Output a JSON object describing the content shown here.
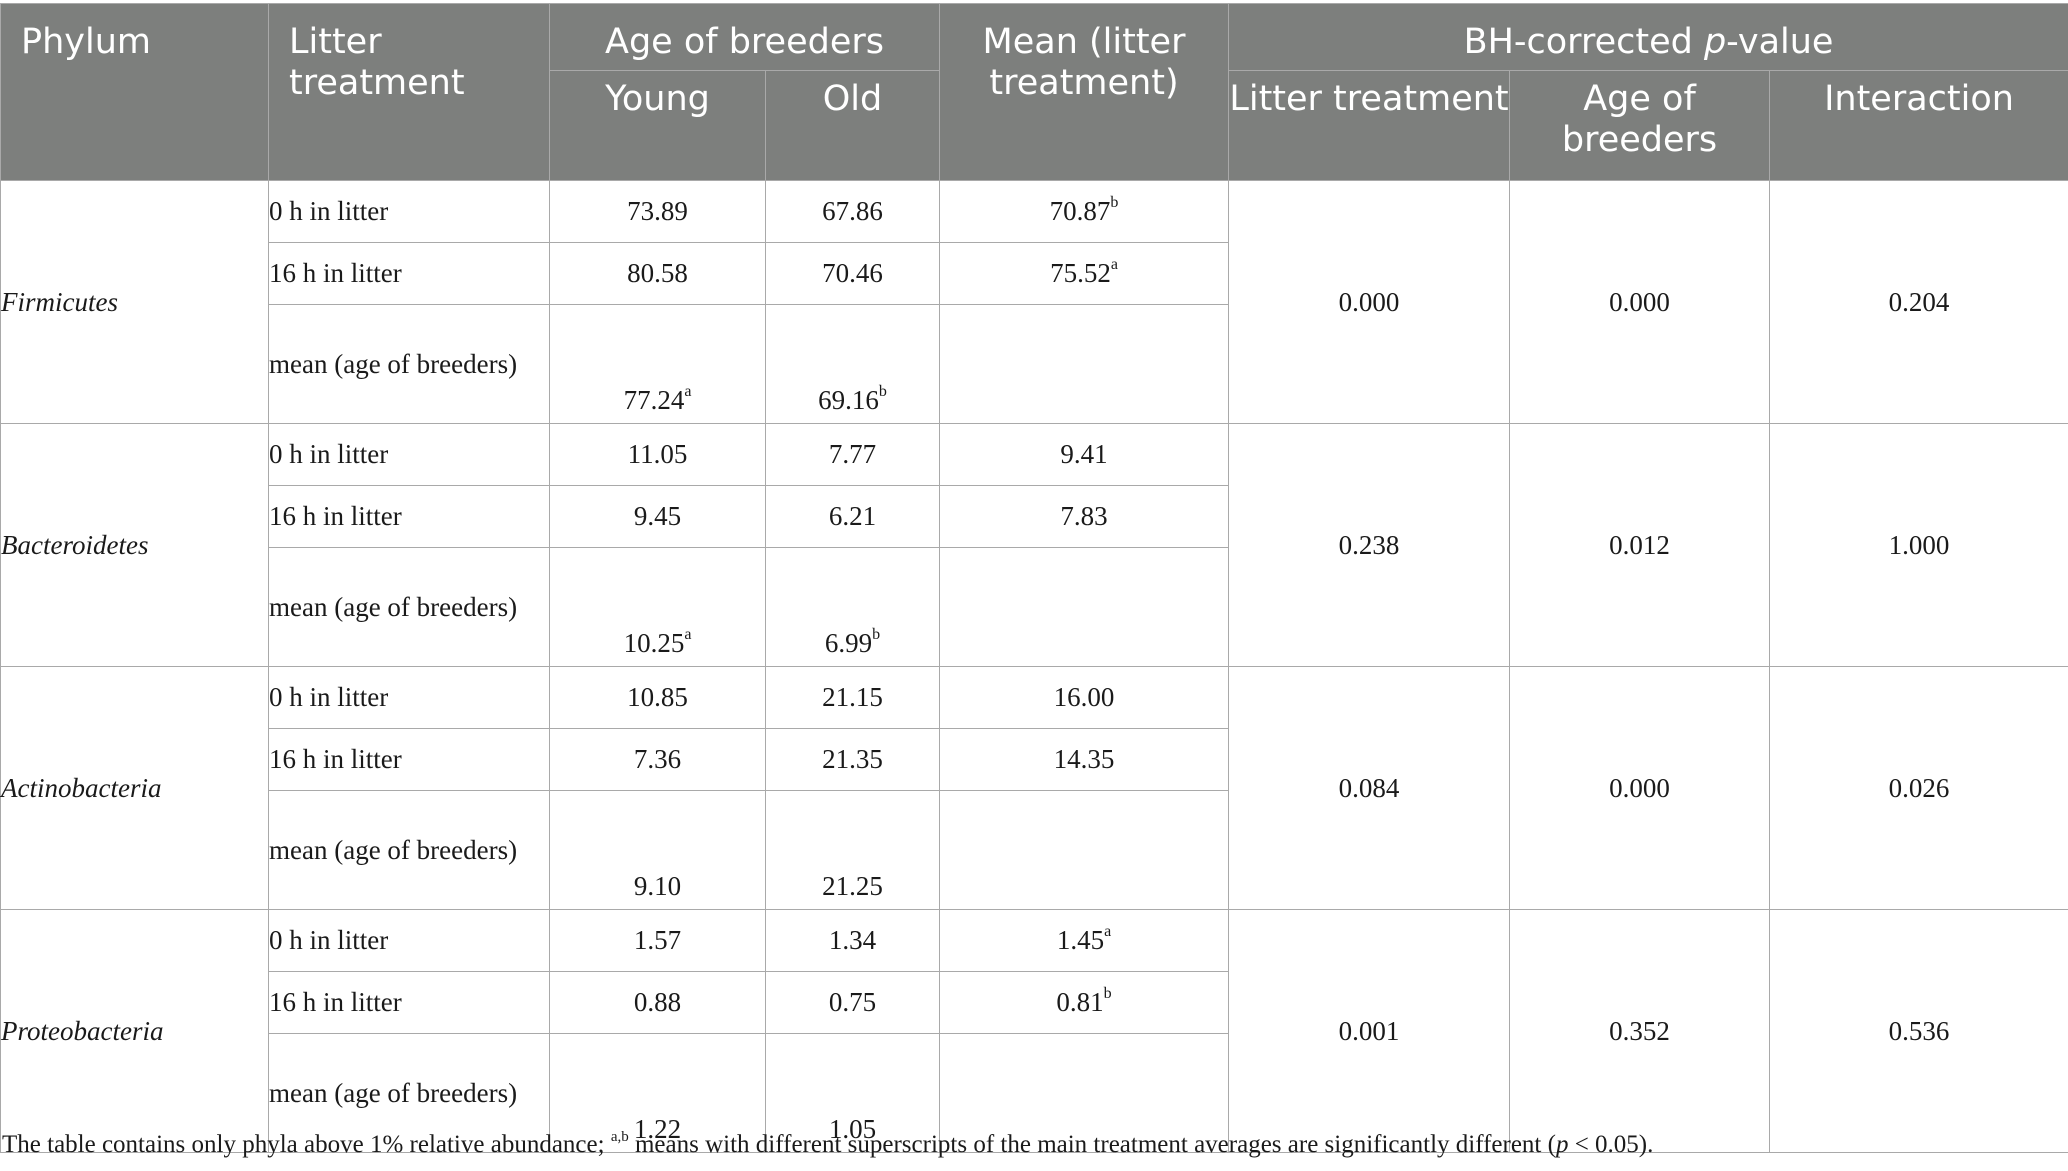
{
  "header": {
    "phylum": "Phylum",
    "litter_treatment": "Litter treatment",
    "age_group": "Age of breeders",
    "young": "Young",
    "old": "Old",
    "mean_litter": "Mean (litter treatment)",
    "bh_prefix": "BH-corrected ",
    "bh_p": "p",
    "bh_suffix": "-value",
    "pv_litter": "Litter treatment",
    "pv_age": "Age of breeders",
    "pv_interaction": "Interaction"
  },
  "rows": [
    {
      "phylum": "Firmicutes",
      "lines": [
        {
          "label": "0 h in litter",
          "young": "73.89",
          "young_sup": "",
          "old": "67.86",
          "old_sup": "",
          "mean": "70.87",
          "mean_sup": "b"
        },
        {
          "label": "16 h in litter",
          "young": "80.58",
          "young_sup": "",
          "old": "70.46",
          "old_sup": "",
          "mean": "75.52",
          "mean_sup": "a"
        },
        {
          "label": "mean (age of breeders)",
          "young": "77.24",
          "young_sup": "a",
          "old": "69.16",
          "old_sup": "b",
          "mean": "",
          "mean_sup": ""
        }
      ],
      "p_litter": "0.000",
      "p_age": "0.000",
      "p_interaction": "0.204"
    },
    {
      "phylum": "Bacteroidetes",
      "lines": [
        {
          "label": "0 h in litter",
          "young": "11.05",
          "young_sup": "",
          "old": "7.77",
          "old_sup": "",
          "mean": "9.41",
          "mean_sup": ""
        },
        {
          "label": "16 h in litter",
          "young": "9.45",
          "young_sup": "",
          "old": "6.21",
          "old_sup": "",
          "mean": "7.83",
          "mean_sup": ""
        },
        {
          "label": "mean (age of breeders)",
          "young": "10.25",
          "young_sup": "a",
          "old": "6.99",
          "old_sup": "b",
          "mean": "",
          "mean_sup": ""
        }
      ],
      "p_litter": "0.238",
      "p_age": "0.012",
      "p_interaction": "1.000"
    },
    {
      "phylum": "Actinobacteria",
      "lines": [
        {
          "label": "0 h in litter",
          "young": "10.85",
          "young_sup": "",
          "old": "21.15",
          "old_sup": "",
          "mean": "16.00",
          "mean_sup": ""
        },
        {
          "label": "16 h in litter",
          "young": "7.36",
          "young_sup": "",
          "old": "21.35",
          "old_sup": "",
          "mean": "14.35",
          "mean_sup": ""
        },
        {
          "label": "mean (age of breeders)",
          "young": "9.10",
          "young_sup": "",
          "old": "21.25",
          "old_sup": "",
          "mean": "",
          "mean_sup": ""
        }
      ],
      "p_litter": "0.084",
      "p_age": "0.000",
      "p_interaction": "0.026"
    },
    {
      "phylum": "Proteobacteria",
      "lines": [
        {
          "label": "0 h in litter",
          "young": "1.57",
          "young_sup": "",
          "old": "1.34",
          "old_sup": "",
          "mean": "1.45",
          "mean_sup": "a"
        },
        {
          "label": "16 h in litter",
          "young": "0.88",
          "young_sup": "",
          "old": "0.75",
          "old_sup": "",
          "mean": "0.81",
          "mean_sup": "b"
        },
        {
          "label": "mean (age of breeders)",
          "young": "1.22",
          "young_sup": "",
          "old": "1.05",
          "old_sup": "",
          "mean": "",
          "mean_sup": ""
        }
      ],
      "p_litter": "0.001",
      "p_age": "0.352",
      "p_interaction": "0.536"
    }
  ],
  "footnote": {
    "pre": "The table contains only phyla above 1% relative abundance; ",
    "sup": "a,b",
    "mid": " means with different superscripts of the main treatment averages are significantly different (",
    "p": "p",
    "post": " < 0.05)."
  }
}
